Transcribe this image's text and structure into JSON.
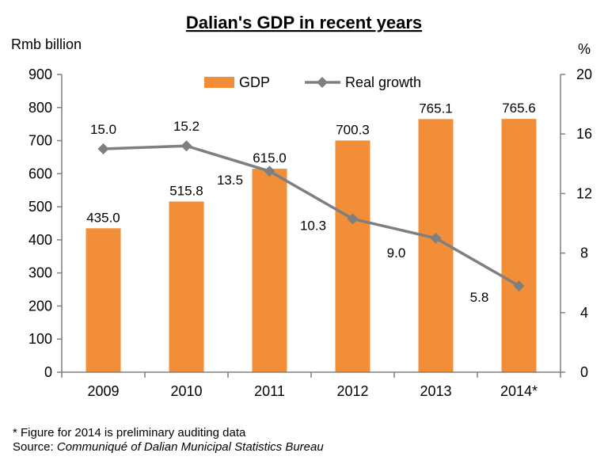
{
  "chart_data": {
    "type": "bar+line",
    "title": "Dalian's GDP in recent years",
    "ylabel_left": "Rmb billion",
    "ylabel_right": "%",
    "categories": [
      "2009",
      "2010",
      "2011",
      "2012",
      "2013",
      "2014*"
    ],
    "ylim_left": [
      0,
      900
    ],
    "yticks_left": [
      0,
      100,
      200,
      300,
      400,
      500,
      600,
      700,
      800,
      900
    ],
    "ylim_right": [
      0,
      20
    ],
    "yticks_right": [
      0,
      4,
      8,
      12,
      16,
      20
    ],
    "grid": false,
    "legend_position": "top",
    "series": [
      {
        "name": "GDP",
        "type": "bar",
        "axis": "left",
        "color": "#f28e38",
        "values": [
          435.0,
          515.8,
          615.0,
          700.3,
          765.1,
          765.6
        ],
        "labels": [
          "435.0",
          "515.8",
          "615.0",
          "700.3",
          "765.1",
          "765.6"
        ]
      },
      {
        "name": "Real growth",
        "type": "line",
        "axis": "right",
        "color": "#7f7f7f",
        "marker": "diamond",
        "values": [
          15.0,
          15.2,
          13.5,
          10.3,
          9.0,
          5.8
        ],
        "labels": [
          "15.0",
          "15.2",
          "13.5",
          "10.3",
          "9.0",
          "5.8"
        ]
      }
    ]
  },
  "footnote": {
    "note": "* Figure for 2014 is preliminary auditing data",
    "source_prefix": "Source: ",
    "source_name": "Communiqué of Dalian Municipal Statistics Bureau"
  }
}
